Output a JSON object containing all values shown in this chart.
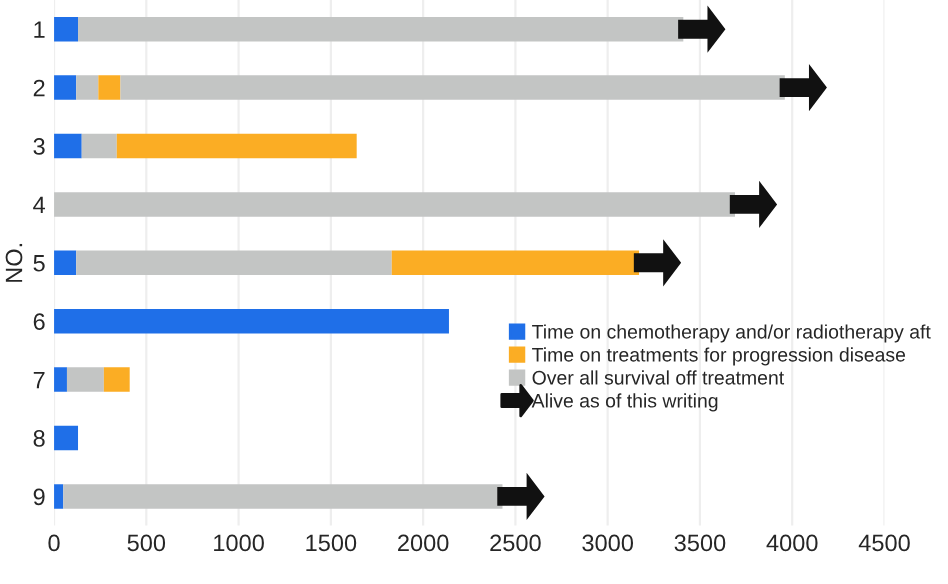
{
  "chart_data": {
    "type": "bar",
    "orientation": "horizontal",
    "stacked": true,
    "ylabel": "NO.",
    "categories": [
      "1",
      "2",
      "3",
      "4",
      "5",
      "6",
      "7",
      "8",
      "9"
    ],
    "series": [
      {
        "name": "Time on chemotherapy and/or radiotherapy aft",
        "color": "#1f6fe8",
        "values": [
          130,
          120,
          150,
          null,
          120,
          2140,
          70,
          130,
          50
        ]
      },
      {
        "color": "#c3c5c4",
        "values": [
          null,
          120,
          190,
          null,
          1710,
          null,
          200,
          null,
          null
        ]
      },
      {
        "name": "Time on treatments for progression disease",
        "color": "#fbad24",
        "values": [
          null,
          120,
          1300,
          null,
          1340,
          null,
          140,
          null,
          null
        ]
      },
      {
        "name": "Over all survival off treatment",
        "color": "#c3c5c4",
        "values": [
          3280,
          3600,
          null,
          3690,
          null,
          null,
          null,
          null,
          2380
        ]
      },
      {
        "name": "Alive as of this writing",
        "type": "scatter",
        "color": "#111111",
        "values": [
          3510,
          4060,
          null,
          3790,
          3270,
          null,
          null,
          null,
          2530
        ]
      }
    ],
    "xlim": [
      0,
      4500
    ],
    "xticks": [
      0,
      500,
      1000,
      1500,
      2000,
      2500,
      3000,
      3500,
      4000,
      4500
    ],
    "grid": "x",
    "legend": "right"
  }
}
